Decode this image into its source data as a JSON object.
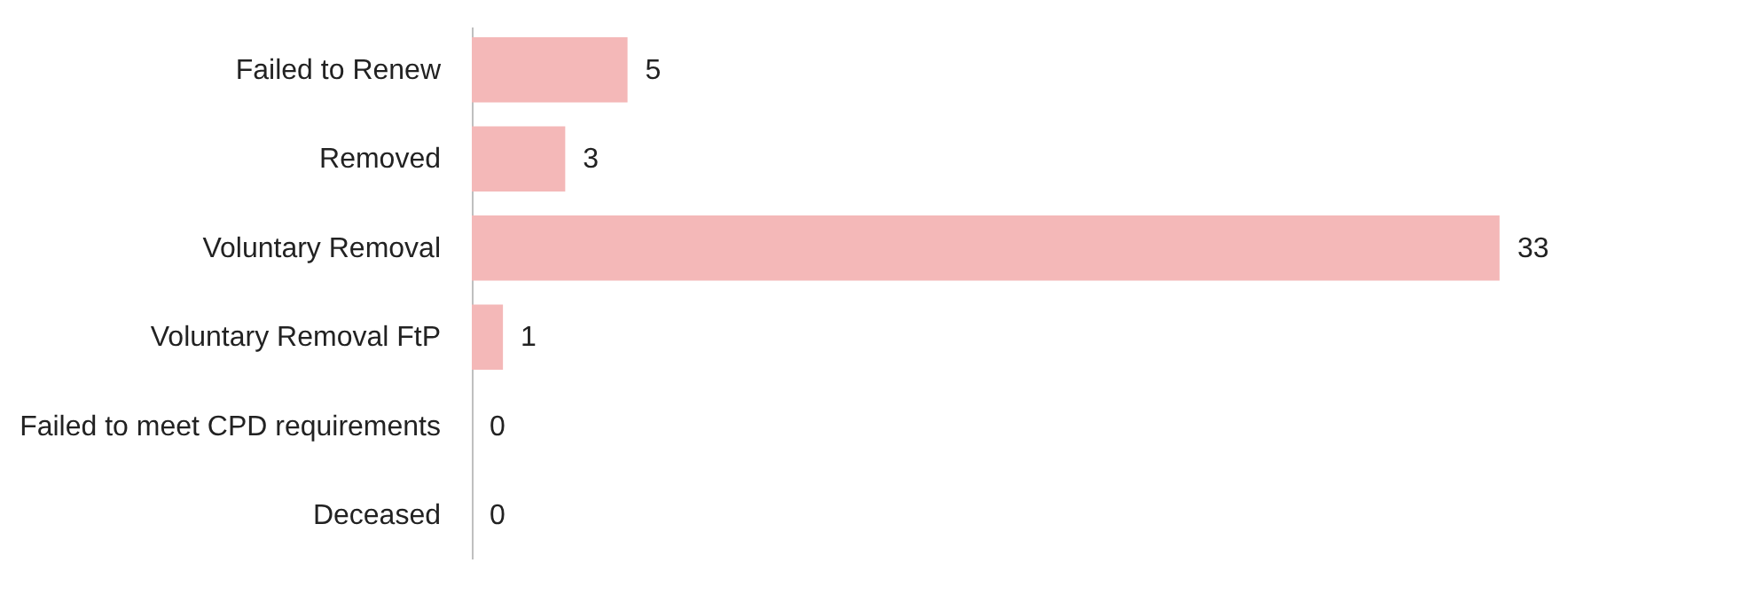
{
  "chart_data": {
    "type": "bar",
    "orientation": "horizontal",
    "categories": [
      "Failed to Renew",
      "Removed",
      "Voluntary Removal",
      "Voluntary Removal FtP",
      "Failed to meet CPD requirements",
      "Deceased"
    ],
    "values": [
      5,
      3,
      33,
      1,
      0,
      0
    ],
    "color": "#f4b8b8",
    "data_labels": true,
    "grid": false
  }
}
